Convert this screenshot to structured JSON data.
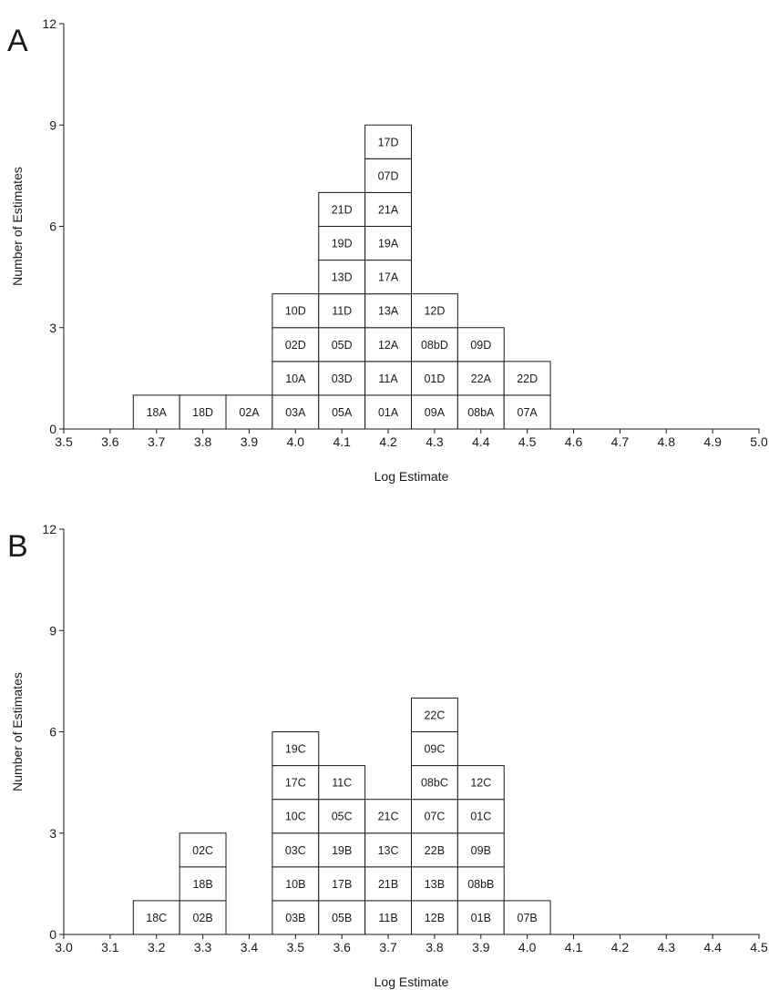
{
  "chart_data": [
    {
      "type": "bar",
      "panel_label": "A",
      "xlabel": "Log Estimate",
      "ylabel": "Number of Estimates",
      "xlim": [
        3.5,
        5.0
      ],
      "ylim": [
        0,
        12
      ],
      "xticks": [
        "3.5",
        "3.6",
        "3.7",
        "3.8",
        "3.9",
        "4.0",
        "4.1",
        "4.2",
        "4.3",
        "4.4",
        "4.5",
        "4.6",
        "4.7",
        "4.8",
        "4.9",
        "5.0"
      ],
      "yticks": [
        "0",
        "3",
        "6",
        "9",
        "12"
      ],
      "bin_width": 0.1,
      "stacks": [
        {
          "x": 3.7,
          "labels": [
            "18A"
          ]
        },
        {
          "x": 3.8,
          "labels": [
            "18D"
          ]
        },
        {
          "x": 3.9,
          "labels": [
            "02A"
          ]
        },
        {
          "x": 4.0,
          "labels": [
            "03A",
            "10A",
            "02D",
            "10D"
          ]
        },
        {
          "x": 4.1,
          "labels": [
            "05A",
            "03D",
            "05D",
            "11D",
            "13D",
            "19D",
            "21D"
          ]
        },
        {
          "x": 4.2,
          "labels": [
            "01A",
            "11A",
            "12A",
            "13A",
            "17A",
            "19A",
            "21A",
            "07D",
            "17D"
          ]
        },
        {
          "x": 4.3,
          "labels": [
            "09A",
            "01D",
            "08bD",
            "12D"
          ]
        },
        {
          "x": 4.4,
          "labels": [
            "08bA",
            "22A",
            "09D"
          ]
        },
        {
          "x": 4.5,
          "labels": [
            "07A",
            "22D"
          ]
        }
      ]
    },
    {
      "type": "bar",
      "panel_label": "B",
      "xlabel": "Log Estimate",
      "ylabel": "Number of Estimates",
      "xlim": [
        3.0,
        4.5
      ],
      "ylim": [
        0,
        12
      ],
      "xticks": [
        "3.0",
        "3.1",
        "3.2",
        "3.3",
        "3.4",
        "3.5",
        "3.6",
        "3.7",
        "3.8",
        "3.9",
        "4.0",
        "4.1",
        "4.2",
        "4.3",
        "4.4",
        "4.5"
      ],
      "yticks": [
        "0",
        "3",
        "6",
        "9",
        "12"
      ],
      "bin_width": 0.1,
      "stacks": [
        {
          "x": 3.2,
          "labels": [
            "18C"
          ]
        },
        {
          "x": 3.3,
          "labels": [
            "02B",
            "18B",
            "02C"
          ]
        },
        {
          "x": 3.5,
          "labels": [
            "03B",
            "10B",
            "03C",
            "10C",
            "17C",
            "19C"
          ]
        },
        {
          "x": 3.6,
          "labels": [
            "05B",
            "17B",
            "19B",
            "05C",
            "11C"
          ]
        },
        {
          "x": 3.7,
          "labels": [
            "11B",
            "21B",
            "13C",
            "21C"
          ]
        },
        {
          "x": 3.8,
          "labels": [
            "12B",
            "13B",
            "22B",
            "07C",
            "08bC",
            "09C",
            "22C"
          ]
        },
        {
          "x": 3.9,
          "labels": [
            "01B",
            "08bB",
            "09B",
            "01C",
            "12C"
          ]
        },
        {
          "x": 4.0,
          "labels": [
            "07B"
          ]
        }
      ]
    }
  ]
}
